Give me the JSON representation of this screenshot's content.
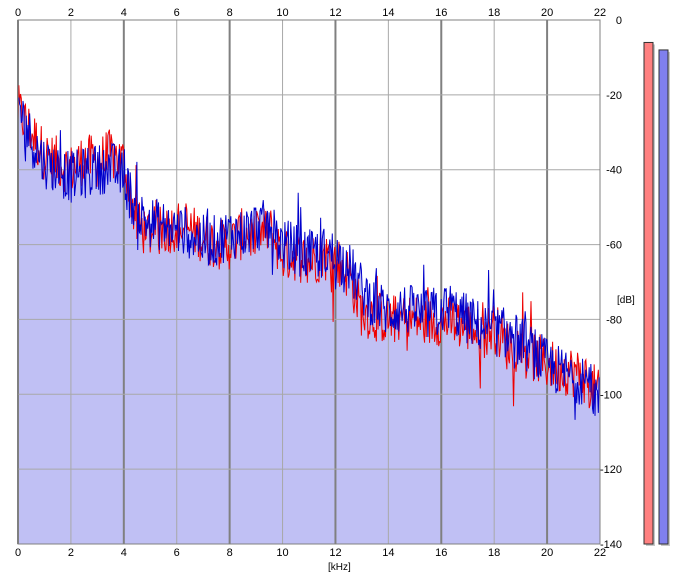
{
  "chart_data": {
    "type": "area",
    "xlabel": "[kHz]",
    "ylabel": "[dB]",
    "xlim": [
      0,
      22
    ],
    "ylim": [
      -140,
      0
    ],
    "x_ticks": [
      "0",
      "2",
      "4",
      "6",
      "8",
      "10",
      "12",
      "14",
      "16",
      "18",
      "20",
      "22"
    ],
    "y_ticks": [
      "0",
      "-20",
      "-40",
      "-60",
      "-80",
      "-100",
      "-120",
      "-140"
    ],
    "grid": true,
    "legend": "none",
    "series": [
      {
        "color": "#ee0000",
        "x": [
          0,
          0.5,
          1,
          1.5,
          2,
          2.5,
          3,
          3.5,
          4,
          4.5,
          5,
          5.5,
          6,
          6.5,
          7,
          7.5,
          8,
          8.5,
          9,
          9.5,
          10,
          10.5,
          11,
          11.5,
          12,
          12.5,
          13,
          13.5,
          14,
          14.5,
          15,
          15.5,
          16,
          16.5,
          17,
          17.5,
          18,
          18.5,
          19,
          19.5,
          20,
          20.5,
          21,
          21.5,
          22
        ],
        "values": [
          -24,
          -30,
          -36,
          -38,
          -40,
          -37,
          -38,
          -36,
          -38,
          -55,
          -57,
          -56,
          -55,
          -56,
          -58,
          -60,
          -60,
          -57,
          -58,
          -56,
          -63,
          -63,
          -64,
          -63,
          -64,
          -68,
          -78,
          -79,
          -80,
          -80,
          -80,
          -81,
          -80,
          -81,
          -82,
          -84,
          -82,
          -87,
          -87,
          -90,
          -92,
          -93,
          -94,
          -96,
          -101
        ]
      },
      {
        "color": "#0000cc",
        "x": [
          0,
          0.5,
          1,
          1.5,
          2,
          2.5,
          3,
          3.5,
          4,
          4.5,
          5,
          5.5,
          6,
          6.5,
          7,
          7.5,
          8,
          8.5,
          9,
          9.5,
          10,
          10.5,
          11,
          11.5,
          12,
          12.5,
          13,
          13.5,
          14,
          14.5,
          15,
          15.5,
          16,
          16.5,
          17,
          17.5,
          18,
          18.5,
          19,
          19.5,
          20,
          20.5,
          21,
          21.5,
          22
        ],
        "values": [
          -22,
          -32,
          -38,
          -40,
          -42,
          -41,
          -40,
          -39,
          -42,
          -52,
          -54,
          -55,
          -56,
          -57,
          -59,
          -59,
          -57,
          -57,
          -55,
          -55,
          -60,
          -61,
          -63,
          -62,
          -63,
          -66,
          -72,
          -76,
          -78,
          -77,
          -78,
          -79,
          -77,
          -78,
          -80,
          -82,
          -83,
          -84,
          -86,
          -89,
          -92,
          -94,
          -95,
          -97,
          -102
        ]
      }
    ],
    "level_meters": [
      {
        "color": "#ff8080",
        "level_db": -6
      },
      {
        "color": "#8080ee",
        "level_db": -8
      }
    ]
  }
}
